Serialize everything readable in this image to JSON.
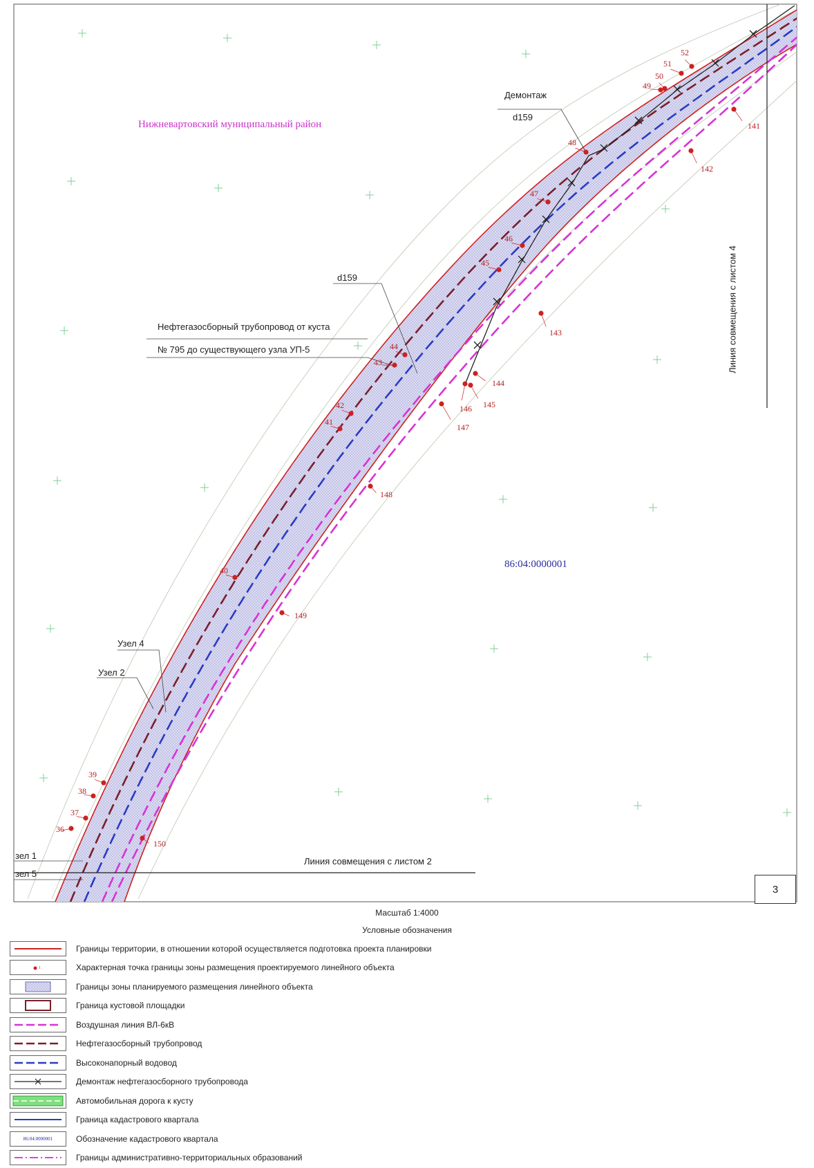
{
  "map": {
    "district_label": "Нижневартовский муниципальный район",
    "cadastral_label": "86:04:0000001",
    "callouts": {
      "demontazh": "Демонтаж",
      "d159_top": "d159",
      "d159_mid": "d159",
      "pipeline_line1": "Нефтегазосборный трубопровод от куста",
      "pipeline_line2": "№ 795 до существующего узла УП-5",
      "uzel4": "Узел 4",
      "uzel2": "Узел 2",
      "uzel1": "зел 1",
      "uzel5": "зел 5"
    },
    "match_line_right": "Линия совмещения с листом 4",
    "match_line_bottom": "Линия совмещения с листом 2",
    "sheet_number": "3",
    "points": [
      {
        "id": "36",
        "label": "36"
      },
      {
        "id": "37",
        "label": "37"
      },
      {
        "id": "38",
        "label": "38"
      },
      {
        "id": "39",
        "label": "39"
      },
      {
        "id": "40",
        "label": "40"
      },
      {
        "id": "41",
        "label": "41"
      },
      {
        "id": "42",
        "label": "42"
      },
      {
        "id": "43",
        "label": "43"
      },
      {
        "id": "44",
        "label": "44"
      },
      {
        "id": "45",
        "label": "45"
      },
      {
        "id": "46",
        "label": "46"
      },
      {
        "id": "47",
        "label": "47"
      },
      {
        "id": "48",
        "label": "48"
      },
      {
        "id": "49",
        "label": "49"
      },
      {
        "id": "50",
        "label": "50"
      },
      {
        "id": "51",
        "label": "51"
      },
      {
        "id": "52",
        "label": "52"
      },
      {
        "id": "141",
        "label": "141"
      },
      {
        "id": "142",
        "label": "142"
      },
      {
        "id": "143",
        "label": "143"
      },
      {
        "id": "144",
        "label": "144"
      },
      {
        "id": "145",
        "label": "145"
      },
      {
        "id": "146",
        "label": "146"
      },
      {
        "id": "147",
        "label": "147"
      },
      {
        "id": "148",
        "label": "148"
      },
      {
        "id": "149",
        "label": "149"
      },
      {
        "id": "150",
        "label": "150"
      }
    ],
    "colors": {
      "boundary_red": "#cc2222",
      "pipeline": "#7a1f2b",
      "water": "#2b3bc4",
      "power_line": "#d633d6",
      "dismantle": "#222222",
      "zone_fill": "#c9c9ee",
      "cadastral": "#2b3bc4",
      "admin": "#e040e0",
      "grid_cross": "#7fcf9a"
    }
  },
  "scale_text": "Масштаб 1:4000",
  "legend": {
    "title": "Условные обозначения",
    "items": [
      {
        "symbol": "red-line",
        "text": "Границы территории, в отношении которой осуществляется подготовка проекта планировки"
      },
      {
        "symbol": "red-point",
        "text": "Характерная точка границы зоны размещения проектируемого линейного объекта"
      },
      {
        "symbol": "hatch-zone",
        "text": "Границы зоны планируемого размещения линейного объекта"
      },
      {
        "symbol": "pad-box",
        "text": "Граница кустовой площадки"
      },
      {
        "symbol": "pink-dash",
        "text": "Воздушная линия ВЛ-6кВ"
      },
      {
        "symbol": "maroon-dash",
        "text": "Нефтегазосборный трубопровод"
      },
      {
        "symbol": "blue-dash",
        "text": "Высоконапорный водовод"
      },
      {
        "symbol": "dismantle-line",
        "text": "Демонтаж нефтегазосборного трубопровода"
      },
      {
        "symbol": "road",
        "text": "Автомобильная дорога к кусту"
      },
      {
        "symbol": "blue-line",
        "text": "Граница кадастрового квартала"
      },
      {
        "symbol": "cad-label",
        "text": "Обозначение кадастрового квартала",
        "sample": "86:04:0000001"
      },
      {
        "symbol": "pink-dashdot",
        "text": "Границы административно-территориальных образований"
      }
    ]
  }
}
